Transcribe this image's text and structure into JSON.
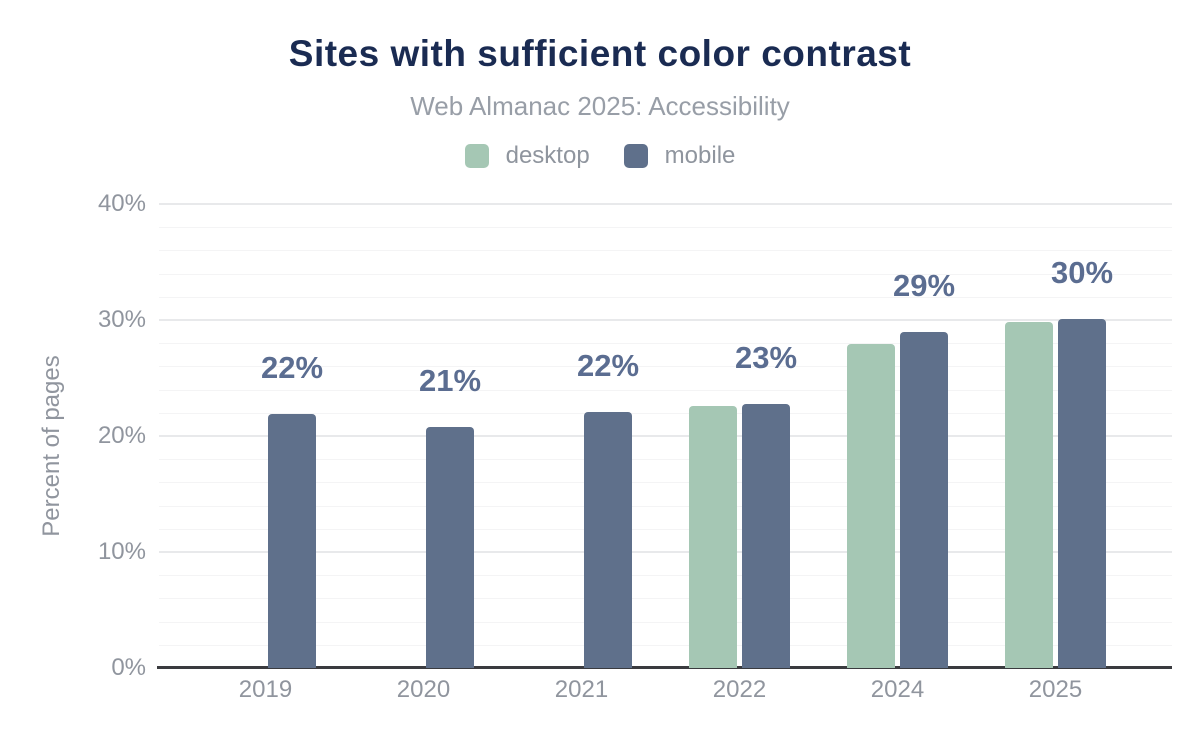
{
  "chart_data": {
    "type": "bar",
    "title": "Sites with sufficient color contrast",
    "subtitle": "Web Almanac 2025: Accessibility",
    "categories": [
      "2019",
      "2020",
      "2021",
      "2022",
      "2024",
      "2025"
    ],
    "series": [
      {
        "name": "desktop",
        "color": "#a5c7b4",
        "values": [
          null,
          null,
          null,
          22.6,
          27.9,
          29.8
        ]
      },
      {
        "name": "mobile",
        "color": "#5f708b",
        "values": [
          21.9,
          20.8,
          22.1,
          22.8,
          29.0,
          30.1
        ]
      }
    ],
    "data_labels": [
      "22%",
      "21%",
      "22%",
      "23%",
      "29%",
      "30%"
    ],
    "data_label_color": "#5b6d91",
    "xlabel": "",
    "ylabel": "Percent of pages",
    "ylim": [
      0,
      40
    ],
    "yticks": [
      {
        "value": 0,
        "label": "0%"
      },
      {
        "value": 10,
        "label": "10%"
      },
      {
        "value": 20,
        "label": "20%"
      },
      {
        "value": 30,
        "label": "30%"
      },
      {
        "value": 40,
        "label": "40%"
      }
    ],
    "grid": {
      "major_step": 10,
      "minor_step": 2,
      "shown": true
    },
    "legend_position": "top"
  },
  "colors": {
    "title": "#1a2b52",
    "subtitle": "#989ea7",
    "axis_text": "#90959e",
    "grid_major": "#e8e9eb",
    "grid_minor": "#f4f4f5",
    "axis_line": "#3a3b3f",
    "desktop": "#a5c7b4",
    "mobile": "#5f708b"
  }
}
